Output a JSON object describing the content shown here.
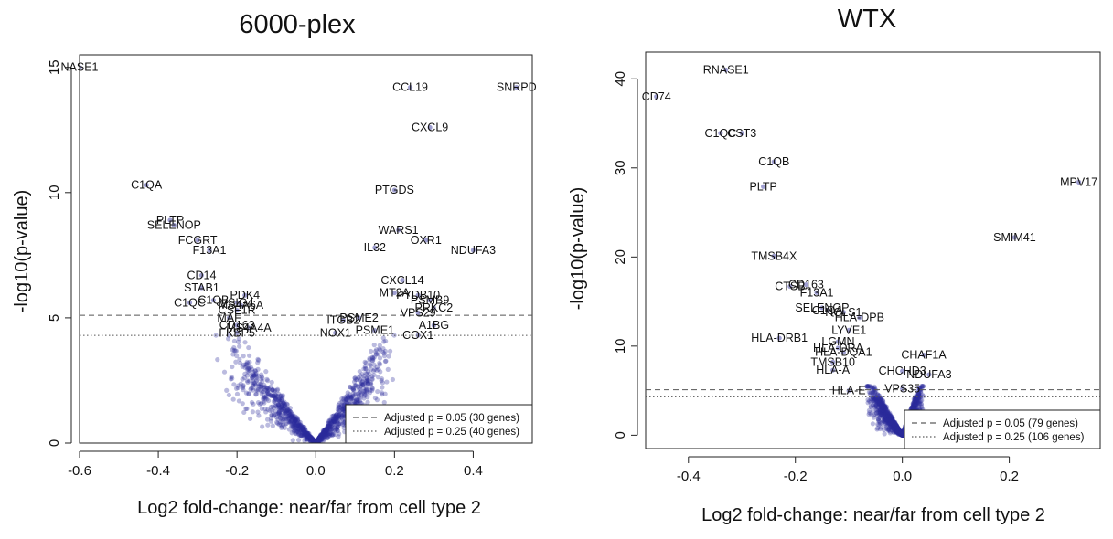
{
  "panels": [
    {
      "title": "6000-plex",
      "xlabel": "Log2 fold-change: near/far from cell type 2",
      "ylabel": "-log10(p-value)",
      "legend": [
        {
          "label": "Adjusted p = 0.05 (30 genes)",
          "style": "dashed"
        },
        {
          "label": "Adjusted p = 0.25 (40 genes)",
          "style": "dotted"
        }
      ]
    },
    {
      "title": "WTX",
      "xlabel": "Log2 fold-change: near/far from cell type 2",
      "ylabel": "-log10(p-value)",
      "legend": [
        {
          "label": "Adjusted p = 0.05 (79 genes)",
          "style": "dashed"
        },
        {
          "label": "Adjusted p = 0.25 (106 genes)",
          "style": "dotted"
        }
      ]
    }
  ],
  "chart_data": [
    {
      "type": "scatter",
      "title": "6000-plex",
      "xlabel": "Log2 fold-change: near/far from cell type 2",
      "ylabel": "-log10(p-value)",
      "xlim": [
        -0.6,
        0.55
      ],
      "ylim": [
        0,
        15.5
      ],
      "xticks": [
        -0.6,
        -0.4,
        -0.2,
        0.0,
        0.2,
        0.4
      ],
      "xtick_labels": [
        "-0.6",
        "-0.4",
        "-0.2",
        "0.0",
        "0.2",
        "0.4"
      ],
      "yticks": [
        0,
        5,
        10,
        15
      ],
      "ytick_labels": [
        "0",
        "5",
        "10",
        "15"
      ],
      "thresholds": [
        {
          "y": 5.1,
          "style": "dashed",
          "label": "Adjusted p = 0.05 (30 genes)"
        },
        {
          "y": 4.3,
          "style": "dotted",
          "label": "Adjusted p = 0.25 (40 genes)"
        }
      ],
      "point_color": "#2b2b9a",
      "grid": false,
      "legend_position": "bottom-right",
      "cloud": {
        "n": 1300,
        "xmin": -0.26,
        "xmax": 0.22,
        "ymax": 4.3
      },
      "labeled_points": [
        {
          "label": "NASE1",
          "x": -0.6,
          "y": 15.0
        },
        {
          "label": "CCL19",
          "x": 0.24,
          "y": 14.2
        },
        {
          "label": "SNRPD",
          "x": 0.51,
          "y": 14.2
        },
        {
          "label": "CXCL9",
          "x": 0.29,
          "y": 12.6
        },
        {
          "label": "C1QA",
          "x": -0.43,
          "y": 10.3
        },
        {
          "label": "PTGDS",
          "x": 0.2,
          "y": 10.1
        },
        {
          "label": "PLTP",
          "x": -0.37,
          "y": 8.9
        },
        {
          "label": "SELENOP",
          "x": -0.36,
          "y": 8.7
        },
        {
          "label": "WARS1",
          "x": 0.21,
          "y": 8.5
        },
        {
          "label": "FCGRT",
          "x": -0.3,
          "y": 8.1
        },
        {
          "label": "OXR1",
          "x": 0.28,
          "y": 8.1
        },
        {
          "label": "IL32",
          "x": 0.15,
          "y": 7.8
        },
        {
          "label": "F13A1",
          "x": -0.27,
          "y": 7.7
        },
        {
          "label": "NDUFA3",
          "x": 0.4,
          "y": 7.7
        },
        {
          "label": "CD14",
          "x": -0.29,
          "y": 6.7
        },
        {
          "label": "CXCL14",
          "x": 0.22,
          "y": 6.5
        },
        {
          "label": "STAB1",
          "x": -0.29,
          "y": 6.2
        },
        {
          "label": "MT2A",
          "x": 0.2,
          "y": 6.0
        },
        {
          "label": "PDK4",
          "x": -0.18,
          "y": 5.9
        },
        {
          "label": "PYDB10",
          "x": 0.26,
          "y": 5.9
        },
        {
          "label": "C1QB",
          "x": -0.26,
          "y": 5.7
        },
        {
          "label": "VSIG4",
          "x": -0.2,
          "y": 5.6
        },
        {
          "label": "C1QC",
          "x": -0.32,
          "y": 5.6
        },
        {
          "label": "PSMB9",
          "x": 0.29,
          "y": 5.7
        },
        {
          "label": "MS4A6A",
          "x": -0.19,
          "y": 5.5
        },
        {
          "label": "PRKC2",
          "x": 0.3,
          "y": 5.4
        },
        {
          "label": "CSF1R",
          "x": -0.2,
          "y": 5.3
        },
        {
          "label": "VPS29",
          "x": 0.26,
          "y": 5.2
        },
        {
          "label": "PSME2",
          "x": 0.11,
          "y": 5.0
        },
        {
          "label": "MAF",
          "x": -0.22,
          "y": 5.0
        },
        {
          "label": "ITGB2",
          "x": 0.07,
          "y": 4.9
        },
        {
          "label": "CD163",
          "x": -0.2,
          "y": 4.7
        },
        {
          "label": "A1BG",
          "x": 0.3,
          "y": 4.7
        },
        {
          "label": "MS4A4A",
          "x": -0.17,
          "y": 4.6
        },
        {
          "label": "PSME1",
          "x": 0.15,
          "y": 4.5
        },
        {
          "label": "FKBP5",
          "x": -0.2,
          "y": 4.4
        },
        {
          "label": "NOX1",
          "x": 0.05,
          "y": 4.4
        },
        {
          "label": "COX1",
          "x": 0.26,
          "y": 4.3
        }
      ]
    },
    {
      "type": "scatter",
      "title": "WTX",
      "xlabel": "Log2 fold-change: near/far from cell type 2",
      "ylabel": "-log10(p-value)",
      "xlim": [
        -0.48,
        0.37
      ],
      "ylim": [
        -1.5,
        43
      ],
      "xticks": [
        -0.4,
        -0.2,
        0.0,
        0.2
      ],
      "xtick_labels": [
        "-0.4",
        "-0.2",
        "0.0",
        "0.2"
      ],
      "yticks": [
        0,
        10,
        20,
        30,
        40
      ],
      "ytick_labels": [
        "0",
        "10",
        "20",
        "30",
        "40"
      ],
      "thresholds": [
        {
          "y": 5.1,
          "style": "dashed",
          "label": "Adjusted p = 0.05 (79 genes)"
        },
        {
          "y": 4.3,
          "style": "dotted",
          "label": "Adjusted p = 0.25 (106 genes)"
        }
      ],
      "point_color": "#2b2b9a",
      "grid": false,
      "legend_position": "bottom-right",
      "cloud": {
        "n": 1700,
        "xmin": -0.07,
        "xmax": 0.04,
        "ymax": 5.5
      },
      "labeled_points": [
        {
          "label": "RNASE1",
          "x": -0.33,
          "y": 41.0
        },
        {
          "label": "CD74",
          "x": -0.46,
          "y": 38.0
        },
        {
          "label": "C1QC",
          "x": -0.34,
          "y": 33.9
        },
        {
          "label": "CST3",
          "x": -0.3,
          "y": 33.9
        },
        {
          "label": "C1QB",
          "x": -0.24,
          "y": 30.7
        },
        {
          "label": "PLTP",
          "x": -0.26,
          "y": 27.9
        },
        {
          "label": "MPV17",
          "x": 0.33,
          "y": 28.4
        },
        {
          "label": "SMIM41",
          "x": 0.21,
          "y": 22.2
        },
        {
          "label": "TMSB4X",
          "x": -0.24,
          "y": 20.1
        },
        {
          "label": "CD163",
          "x": -0.18,
          "y": 16.9
        },
        {
          "label": "CTSB",
          "x": -0.21,
          "y": 16.7
        },
        {
          "label": "F13A1",
          "x": -0.16,
          "y": 16.0
        },
        {
          "label": "SELENOP",
          "x": -0.15,
          "y": 14.3
        },
        {
          "label": "C1QA",
          "x": -0.14,
          "y": 14.0
        },
        {
          "label": "HCLS1",
          "x": -0.11,
          "y": 13.8
        },
        {
          "label": "HLA-DPB",
          "x": -0.08,
          "y": 13.2
        },
        {
          "label": "LYVE1",
          "x": -0.1,
          "y": 11.8
        },
        {
          "label": "HLA-DRB1",
          "x": -0.23,
          "y": 10.9
        },
        {
          "label": "LGMN",
          "x": -0.12,
          "y": 10.5
        },
        {
          "label": "HLA-DRA",
          "x": -0.12,
          "y": 9.8
        },
        {
          "label": "HLA-DQA1",
          "x": -0.11,
          "y": 9.3
        },
        {
          "label": "CHAF1A",
          "x": 0.04,
          "y": 9.0
        },
        {
          "label": "TMSB10",
          "x": -0.13,
          "y": 8.2
        },
        {
          "label": "HLA-A",
          "x": -0.13,
          "y": 7.3
        },
        {
          "label": "CHCHD3",
          "x": 0.0,
          "y": 7.2
        },
        {
          "label": "NDUFA3",
          "x": 0.05,
          "y": 6.8
        },
        {
          "label": "HLA-E",
          "x": -0.1,
          "y": 5.0
        },
        {
          "label": "VPS35",
          "x": 0.0,
          "y": 5.2
        }
      ]
    }
  ]
}
